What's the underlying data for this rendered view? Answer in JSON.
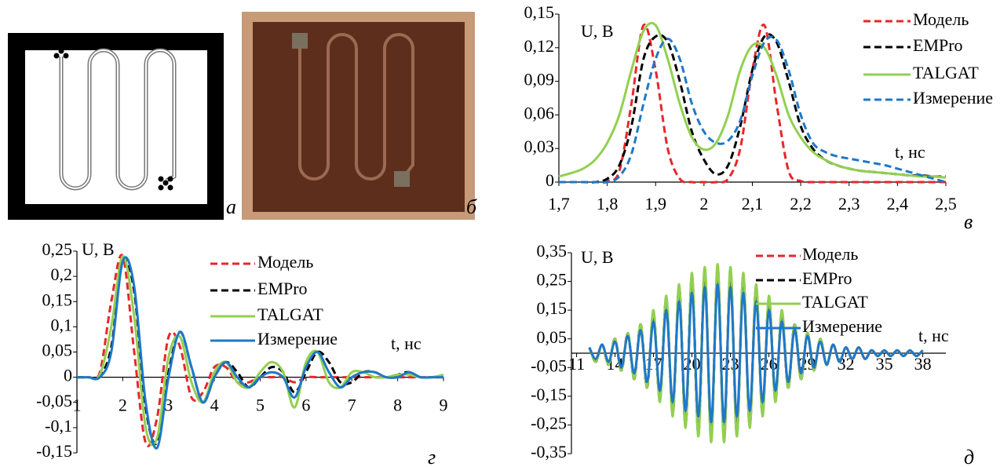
{
  "panels": [
    {
      "panel_label": "а"
    },
    {
      "panel_label": "б"
    }
  ],
  "chart_data": [
    {
      "type": "line",
      "panel_label": "в",
      "y_label": "U, В",
      "x_label": "t, нс",
      "x": [
        1.7,
        1.725,
        1.75,
        1.775,
        1.8,
        1.825,
        1.85,
        1.875,
        1.9,
        1.925,
        1.95,
        1.975,
        2.0,
        2.025,
        2.05,
        2.075,
        2.1,
        2.125,
        2.15,
        2.175,
        2.2,
        2.225,
        2.25,
        2.275,
        2.3,
        2.325,
        2.35,
        2.375,
        2.4,
        2.425,
        2.45,
        2.475,
        2.5
      ],
      "xlim": [
        1.7,
        2.5
      ],
      "xticks": [
        {
          "value": 1.7,
          "label": "1,7"
        },
        {
          "value": 1.8,
          "label": "1,8"
        },
        {
          "value": 1.9,
          "label": "1,9"
        },
        2,
        {
          "value": 2.1,
          "label": "2,1"
        },
        {
          "value": 2.2,
          "label": "2,2"
        },
        {
          "value": 2.3,
          "label": "2,3"
        },
        {
          "value": 2.4,
          "label": "2,4"
        },
        {
          "value": 2.5,
          "label": "2,5"
        }
      ],
      "ylim": [
        0,
        0.15
      ],
      "yticks": [
        0,
        {
          "value": 0.03,
          "label": "0,03"
        },
        {
          "value": 0.06,
          "label": "0,06"
        },
        {
          "value": 0.09,
          "label": "0,09"
        },
        {
          "value": 0.12,
          "label": "0,12"
        },
        {
          "value": 0.15,
          "label": "0,15"
        }
      ],
      "series": [
        {
          "name": "Модель",
          "color": "#e8262a",
          "dash": true,
          "values": [
            0,
            0,
            0,
            0,
            0.001,
            0.01,
            0.07,
            0.14,
            0.1,
            0.03,
            0.003,
            0,
            0,
            0,
            0.003,
            0.03,
            0.1,
            0.14,
            0.07,
            0.01,
            0.001,
            0,
            0,
            0,
            0,
            0,
            0,
            0,
            0,
            0,
            0,
            0,
            0
          ]
        },
        {
          "name": "EMPro",
          "color": "#000000",
          "dash": true,
          "values": [
            0,
            0,
            0,
            0,
            0.003,
            0.015,
            0.05,
            0.11,
            0.13,
            0.125,
            0.09,
            0.045,
            0.02,
            0.007,
            0.015,
            0.05,
            0.1,
            0.13,
            0.125,
            0.09,
            0.05,
            0.03,
            0.02,
            0.015,
            0.012,
            0.01,
            0.009,
            0.008,
            0.007,
            0.006,
            0.006,
            0.005,
            0.005
          ]
        },
        {
          "name": "TALGAT",
          "color": "#92d050",
          "dash": false,
          "values": [
            0.005,
            0.008,
            0.012,
            0.02,
            0.035,
            0.06,
            0.1,
            0.135,
            0.14,
            0.11,
            0.07,
            0.04,
            0.029,
            0.035,
            0.06,
            0.1,
            0.122,
            0.12,
            0.095,
            0.06,
            0.04,
            0.027,
            0.02,
            0.015,
            0.012,
            0.01,
            0.009,
            0.008,
            0.007,
            0.006,
            0.005,
            0.005,
            0.004
          ]
        },
        {
          "name": "Измерение",
          "color": "#1f78c8",
          "dash": true,
          "values": [
            0,
            0,
            0,
            0,
            0,
            0.005,
            0.025,
            0.07,
            0.11,
            0.128,
            0.11,
            0.07,
            0.045,
            0.035,
            0.037,
            0.055,
            0.095,
            0.125,
            0.127,
            0.1,
            0.06,
            0.035,
            0.027,
            0.023,
            0.021,
            0.019,
            0.017,
            0.015,
            0.012,
            0.009,
            0.006,
            0.003,
            0
          ]
        }
      ]
    },
    {
      "type": "line",
      "panel_label": "г",
      "y_label": "U, В",
      "x_label": "t, нс",
      "x": [
        1,
        1.25,
        1.5,
        1.75,
        2,
        2.25,
        2.5,
        2.75,
        3,
        3.25,
        3.5,
        3.75,
        4,
        4.25,
        4.5,
        4.75,
        5,
        5.25,
        5.5,
        5.75,
        6,
        6.25,
        6.5,
        6.75,
        7,
        7.25,
        7.5,
        7.75,
        8,
        8.25,
        8.5,
        8.75,
        9
      ],
      "xlim": [
        1,
        9
      ],
      "xticks": [
        1,
        2,
        3,
        4,
        5,
        6,
        7,
        8,
        9
      ],
      "ylim": [
        -0.15,
        0.25
      ],
      "yticks": [
        {
          "value": 0.25,
          "label": "0,25"
        },
        {
          "value": 0.2,
          "label": "0,2"
        },
        {
          "value": 0.15,
          "label": "0,15"
        },
        {
          "value": 0.1,
          "label": "0,1"
        },
        {
          "value": 0.05,
          "label": "0,05"
        },
        0,
        {
          "value": -0.05,
          "label": "-0,05"
        },
        {
          "value": -0.1,
          "label": "-0,1"
        },
        {
          "value": -0.15,
          "label": "-0,15"
        }
      ],
      "series": [
        {
          "name": "Модель",
          "color": "#e8262a",
          "dash": true,
          "values": [
            0,
            0,
            0.01,
            0.15,
            0.24,
            0.05,
            -0.13,
            -0.08,
            0.08,
            0.06,
            -0.04,
            -0.03,
            0.02,
            0.02,
            -0.01,
            -0.01,
            0,
            0,
            0,
            -0.01,
            0,
            0,
            0,
            0,
            0,
            0,
            0,
            0,
            0,
            0,
            0,
            0,
            0
          ]
        },
        {
          "name": "EMPro",
          "color": "#000000",
          "dash": true,
          "values": [
            0,
            0,
            0.002,
            0.06,
            0.23,
            0.17,
            -0.06,
            -0.13,
            0.01,
            0.09,
            0.02,
            -0.05,
            0,
            0.03,
            0.01,
            -0.02,
            0,
            0.02,
            0.01,
            -0.03,
            0.01,
            0.05,
            0.03,
            -0.01,
            -0.01,
            0.01,
            0.01,
            0,
            0.005,
            0.01,
            0,
            0,
            0
          ]
        },
        {
          "name": "TALGAT",
          "color": "#92d050",
          "dash": false,
          "values": [
            0,
            0,
            0.005,
            0.1,
            0.24,
            0.12,
            -0.1,
            -0.12,
            0.04,
            0.08,
            -0.01,
            -0.05,
            0.01,
            0.03,
            -0.01,
            -0.02,
            0.01,
            0.03,
            0.01,
            -0.06,
            0.03,
            0.05,
            -0.01,
            -0.02,
            0.01,
            0.01,
            0,
            0,
            0.005,
            0.005,
            0,
            0,
            0.005
          ]
        },
        {
          "name": "Измерение",
          "color": "#1f78c8",
          "dash": false,
          "values": [
            0,
            0,
            0,
            0.05,
            0.23,
            0.18,
            -0.05,
            -0.14,
            0,
            0.09,
            0.02,
            -0.05,
            0,
            0.03,
            0,
            -0.02,
            0,
            0.01,
            0,
            -0.04,
            0.02,
            0.05,
            0.01,
            -0.02,
            0,
            0.01,
            0.01,
            0,
            0,
            0.01,
            0,
            0,
            0
          ]
        }
      ]
    },
    {
      "type": "line",
      "panel_label": "д",
      "y_label": "U, В",
      "x_label": "t, нс",
      "x": [
        12,
        12.5,
        13,
        13.5,
        14,
        14.5,
        15,
        15.5,
        16,
        16.5,
        17,
        17.5,
        18,
        18.5,
        19,
        19.5,
        20,
        20.5,
        21,
        21.5,
        22,
        22.5,
        23,
        23.5,
        24,
        24.5,
        25,
        25.5,
        26,
        26.5,
        27,
        27.5,
        28,
        28.5,
        29,
        29.5,
        30,
        30.5,
        31,
        31.5,
        32,
        32.5,
        33,
        33.5,
        34,
        34.5,
        35,
        35.5,
        36,
        36.5,
        37,
        37.5,
        38
      ],
      "xlim": [
        10.6,
        39.8
      ],
      "xticks": [
        11,
        14,
        17,
        20,
        23,
        26,
        29,
        32,
        35,
        38
      ],
      "ylim": [
        -0.35,
        0.35
      ],
      "yticks": [
        {
          "value": 0.35,
          "label": "0,35"
        },
        {
          "value": 0.25,
          "label": "0,25"
        },
        {
          "value": 0.15,
          "label": "0,15"
        },
        {
          "value": 0.05,
          "label": "0,05"
        },
        {
          "value": -0.05,
          "label": "-0,05"
        },
        {
          "value": -0.15,
          "label": "-0,15"
        },
        {
          "value": -0.25,
          "label": "-0,25"
        },
        {
          "value": -0.35,
          "label": "-0,35"
        }
      ],
      "series": [
        {
          "name": "Модель",
          "color": "#e8262a",
          "dash": true,
          "values": [
            0.02,
            -0.03,
            0.03,
            -0.04,
            0.05,
            -0.06,
            0.07,
            -0.09,
            0.1,
            -0.12,
            0.14,
            -0.16,
            0.19,
            -0.21,
            0.23,
            -0.25,
            0.27,
            -0.28,
            0.29,
            -0.3,
            0.3,
            -0.3,
            0.29,
            -0.28,
            0.27,
            -0.25,
            0.23,
            -0.21,
            0.19,
            -0.16,
            0.14,
            -0.12,
            0.1,
            -0.09,
            0.07,
            -0.06,
            0.05,
            -0.04,
            0.03,
            -0.03,
            0.02,
            -0.02,
            0.02,
            -0.02,
            0.01,
            -0.01,
            0.01,
            -0.01,
            0.01,
            -0.01,
            0.01,
            -0.01,
            0.01
          ]
        },
        {
          "name": "EMPro",
          "color": "#000000",
          "dash": true,
          "values": [
            0.02,
            -0.03,
            0.03,
            -0.04,
            0.05,
            -0.06,
            0.07,
            -0.09,
            0.1,
            -0.12,
            0.14,
            -0.16,
            0.19,
            -0.21,
            0.23,
            -0.25,
            0.27,
            -0.28,
            0.28,
            -0.29,
            0.29,
            -0.29,
            0.28,
            -0.28,
            0.27,
            -0.25,
            0.23,
            -0.21,
            0.19,
            -0.16,
            0.14,
            -0.12,
            0.1,
            -0.09,
            0.07,
            -0.06,
            0.05,
            -0.04,
            0.03,
            -0.03,
            0.02,
            -0.02,
            0.02,
            -0.02,
            0.01,
            -0.01,
            0.01,
            -0.01,
            0.01,
            -0.01,
            0.01,
            -0.01,
            0.01
          ]
        },
        {
          "name": "TALGAT",
          "color": "#92d050",
          "dash": false,
          "values": [
            0.02,
            -0.03,
            0.03,
            -0.04,
            0.05,
            -0.06,
            0.07,
            -0.09,
            0.1,
            -0.12,
            0.15,
            -0.17,
            0.2,
            -0.22,
            0.24,
            -0.26,
            0.28,
            -0.29,
            0.3,
            -0.31,
            0.31,
            -0.31,
            0.3,
            -0.29,
            0.28,
            -0.26,
            0.24,
            -0.22,
            0.2,
            -0.17,
            0.15,
            -0.12,
            0.1,
            -0.09,
            0.07,
            -0.06,
            0.05,
            -0.04,
            0.03,
            -0.03,
            0.02,
            -0.02,
            0.02,
            -0.02,
            0.01,
            -0.01,
            0.01,
            -0.01,
            0.01,
            -0.01,
            0.01,
            -0.01,
            0.01
          ]
        },
        {
          "name": "Измерение",
          "color": "#1f78c8",
          "dash": false,
          "values": [
            0.02,
            -0.02,
            0.03,
            -0.03,
            0.04,
            -0.05,
            0.06,
            -0.07,
            0.08,
            -0.1,
            0.11,
            -0.13,
            0.15,
            -0.17,
            0.18,
            -0.2,
            0.21,
            -0.22,
            0.23,
            -0.24,
            0.24,
            -0.24,
            0.23,
            -0.22,
            0.21,
            -0.2,
            0.18,
            -0.17,
            0.15,
            -0.13,
            0.11,
            -0.1,
            0.08,
            -0.07,
            0.06,
            -0.05,
            0.04,
            -0.04,
            0.03,
            -0.03,
            0.02,
            -0.02,
            0.02,
            -0.02,
            0.01,
            -0.01,
            0.01,
            -0.01,
            0.01,
            -0.01,
            0.01,
            -0.01,
            0.01
          ]
        }
      ]
    }
  ]
}
